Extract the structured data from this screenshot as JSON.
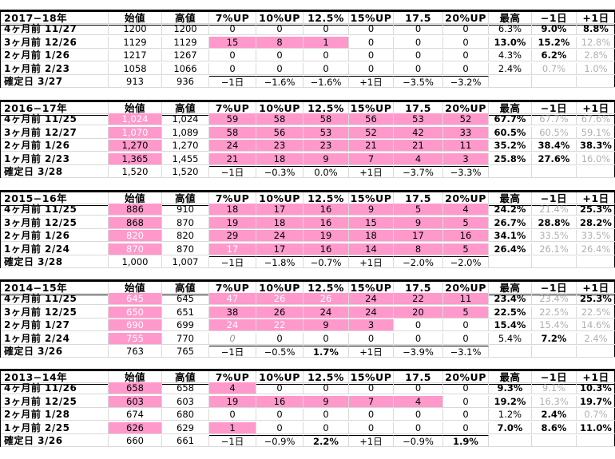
{
  "headers": [
    "始値",
    "高値",
    "7%UP",
    "10%UP",
    "12.5%",
    "15%UP",
    "17.5",
    "20%UP",
    "最高",
    "−1日",
    "+1日"
  ],
  "blocks": [
    {
      "year": "2017−18年",
      "rows": [
        {
          "label": "4ヶ月前 11/27",
          "cells": [
            "1200",
            "1200",
            "0",
            "0",
            "0",
            "0",
            "0",
            "0",
            "6.3%",
            "9.0%",
            "8.8%"
          ],
          "style": [
            "",
            "",
            "",
            "",
            "",
            "",
            "",
            "",
            "",
            "b",
            "b"
          ]
        },
        {
          "label": "3ヶ月前 12/26",
          "cells": [
            "1129",
            "1129",
            "15",
            "8",
            "1",
            "0",
            "0",
            "0",
            "13.0%",
            "15.2%",
            "12.8%"
          ],
          "style": [
            "",
            "",
            "p",
            "p",
            "p",
            "",
            "",
            "",
            "b",
            "b",
            "g"
          ]
        },
        {
          "label": "2ヶ月前 1/26",
          "cells": [
            "1217",
            "1267",
            "0",
            "0",
            "0",
            "0",
            "0",
            "0",
            "4.3%",
            "6.2%",
            "2.8%"
          ],
          "style": [
            "",
            "",
            "",
            "",
            "",
            "",
            "",
            "",
            "",
            "b",
            "g"
          ]
        },
        {
          "label": "1ヶ月前 2/23",
          "cells": [
            "1058",
            "1066",
            "0",
            "0",
            "0",
            "0",
            "0",
            "0",
            "2.4%",
            "0.7%",
            "1.0%"
          ],
          "style": [
            "",
            "",
            "",
            "",
            "",
            "",
            "",
            "",
            "",
            "g",
            "g"
          ]
        },
        {
          "label": "確定日 3/27",
          "cells": [
            "913",
            "936",
            "−1日",
            "−1.6%",
            "−1.6%",
            "+1日",
            "−3.5%",
            "−3.2%",
            "",
            "",
            ""
          ],
          "style": [
            "",
            "",
            "x",
            "x",
            "x",
            "x",
            "x",
            "x",
            "",
            "",
            ""
          ]
        }
      ]
    },
    {
      "year": "2016−17年",
      "rows": [
        {
          "label": "4ヶ月前 11/25",
          "cells": [
            "1,024",
            "1,024",
            "59",
            "58",
            "58",
            "56",
            "53",
            "52",
            "67.7%",
            "67.7%",
            "67.6%"
          ],
          "style": [
            "pg",
            "",
            "p",
            "p",
            "p",
            "p",
            "p",
            "p",
            "b",
            "g",
            "g"
          ]
        },
        {
          "label": "3ヶ月前 12/27",
          "cells": [
            "1,070",
            "1,089",
            "58",
            "56",
            "53",
            "52",
            "42",
            "33",
            "60.5%",
            "60.5%",
            "59.1%"
          ],
          "style": [
            "pg",
            "",
            "p",
            "p",
            "p",
            "p",
            "p",
            "p",
            "b",
            "g",
            "g"
          ]
        },
        {
          "label": "2ヶ月前 1/26",
          "cells": [
            "1,270",
            "1,270",
            "24",
            "23",
            "23",
            "21",
            "21",
            "11",
            "35.2%",
            "38.4%",
            "38.3%"
          ],
          "style": [
            "p",
            "",
            "p",
            "p",
            "p",
            "p",
            "p",
            "p",
            "b",
            "b",
            "b"
          ]
        },
        {
          "label": "1ヶ月前 2/23",
          "cells": [
            "1,365",
            "1,455",
            "21",
            "18",
            "9",
            "7",
            "4",
            "3",
            "25.8%",
            "27.6%",
            "16.0%"
          ],
          "style": [
            "p",
            "",
            "p",
            "p",
            "p",
            "p",
            "p",
            "p",
            "b",
            "b",
            "g"
          ]
        },
        {
          "label": "確定日 3/28",
          "cells": [
            "1,520",
            "1,520",
            "−1日",
            "−0.3%",
            "0.0%",
            "+1日",
            "−3.7%",
            "−3.3%",
            "",
            "",
            ""
          ],
          "style": [
            "",
            "",
            "x",
            "x",
            "x",
            "x",
            "x",
            "x",
            "",
            "",
            ""
          ]
        }
      ]
    },
    {
      "year": "2015−16年",
      "rows": [
        {
          "label": "4ヶ月前 11/25",
          "cells": [
            "886",
            "910",
            "18",
            "17",
            "16",
            "9",
            "5",
            "4",
            "24.2%",
            "21.4%",
            "25.3%"
          ],
          "style": [
            "p",
            "",
            "p",
            "p",
            "p",
            "p",
            "p",
            "p",
            "b",
            "g",
            "b"
          ]
        },
        {
          "label": "3ヶ月前 12/25",
          "cells": [
            "868",
            "870",
            "19",
            "18",
            "16",
            "15",
            "9",
            "5",
            "26.7%",
            "28.8%",
            "28.2%"
          ],
          "style": [
            "p",
            "",
            "p",
            "p",
            "p",
            "p",
            "p",
            "p",
            "b",
            "b",
            "b"
          ]
        },
        {
          "label": "2ヶ月前 1/26",
          "cells": [
            "820",
            "820",
            "29",
            "24",
            "19",
            "18",
            "17",
            "16",
            "34.1%",
            "33.5%",
            "33.5%"
          ],
          "style": [
            "pg",
            "",
            "p",
            "p",
            "p",
            "p",
            "p",
            "p",
            "b",
            "g",
            "g"
          ]
        },
        {
          "label": "1ヶ月前 2/24",
          "cells": [
            "870",
            "870",
            "17",
            "17",
            "16",
            "14",
            "8",
            "5",
            "26.4%",
            "26.1%",
            "26.4%"
          ],
          "style": [
            "pg",
            "",
            "pg",
            "p",
            "p",
            "p",
            "p",
            "p",
            "b",
            "g",
            "g"
          ]
        },
        {
          "label": "確定日 3/28",
          "cells": [
            "1,000",
            "1,007",
            "−1日",
            "−1.8%",
            "−0.7%",
            "+1日",
            "−2.0%",
            "−2.0%",
            "",
            "",
            ""
          ],
          "style": [
            "",
            "",
            "x",
            "x",
            "x",
            "x",
            "x",
            "x",
            "",
            "",
            ""
          ]
        }
      ]
    },
    {
      "year": "2014−15年",
      "rows": [
        {
          "label": "4ヶ月前 11/25",
          "cells": [
            "645",
            "645",
            "47",
            "26",
            "26",
            "24",
            "22",
            "11",
            "23.4%",
            "23.4%",
            "25.3%"
          ],
          "style": [
            "pg",
            "",
            "pg",
            "pg",
            "pg",
            "p",
            "p",
            "p",
            "b",
            "g",
            "b"
          ]
        },
        {
          "label": "3ヶ月前 12/25",
          "cells": [
            "650",
            "651",
            "38",
            "26",
            "24",
            "24",
            "20",
            "5",
            "22.5%",
            "22.5%",
            "22.5%"
          ],
          "style": [
            "pg",
            "",
            "p",
            "p",
            "p",
            "p",
            "p",
            "p",
            "b",
            "g",
            "g"
          ]
        },
        {
          "label": "2ヶ月前 1/27",
          "cells": [
            "690",
            "699",
            "24",
            "22",
            "9",
            "3",
            "0",
            "0",
            "15.4%",
            "15.4%",
            "14.6%"
          ],
          "style": [
            "pg",
            "",
            "pg",
            "pg",
            "p",
            "p",
            "",
            "",
            "b",
            "g",
            "g"
          ]
        },
        {
          "label": "1ヶ月前 2/24",
          "cells": [
            "755",
            "770",
            "0",
            "0",
            "0",
            "0",
            "0",
            "0",
            "5.4%",
            "7.2%",
            "2.4%"
          ],
          "style": [
            "pg",
            "",
            "i",
            "",
            "",
            "",
            "",
            "",
            "",
            "b",
            "g"
          ]
        },
        {
          "label": "確定日 3/26",
          "cells": [
            "763",
            "765",
            "−1日",
            "−0.5%",
            "1.7%",
            "+1日",
            "−3.9%",
            "−3.1%",
            "",
            "",
            ""
          ],
          "style": [
            "",
            "",
            "x",
            "x",
            "xb",
            "x",
            "x",
            "x",
            "",
            "",
            ""
          ]
        }
      ]
    },
    {
      "year": "2013−14年",
      "rows": [
        {
          "label": "4ヶ月前 11/26",
          "cells": [
            "658",
            "658",
            "4",
            "0",
            "0",
            "0",
            "0",
            "0",
            "9.3%",
            "9.1%",
            "10.3%"
          ],
          "style": [
            "p",
            "",
            "p",
            "",
            "",
            "",
            "",
            "",
            "b",
            "g",
            "b"
          ]
        },
        {
          "label": "3ヶ月前 12/25",
          "cells": [
            "603",
            "603",
            "19",
            "16",
            "9",
            "7",
            "4",
            "0",
            "19.2%",
            "16.3%",
            "19.7%"
          ],
          "style": [
            "p",
            "",
            "p",
            "p",
            "p",
            "p",
            "p",
            "",
            "b",
            "g",
            "b"
          ]
        },
        {
          "label": "2ヶ月前 1/28",
          "cells": [
            "674",
            "680",
            "0",
            "0",
            "0",
            "0",
            "0",
            "0",
            "1.2%",
            "2.4%",
            "0.7%"
          ],
          "style": [
            "",
            "",
            "",
            "",
            "",
            "",
            "",
            "",
            "",
            "b",
            "g"
          ]
        },
        {
          "label": "1ヶ月前 2/25",
          "cells": [
            "626",
            "629",
            "1",
            "0",
            "0",
            "0",
            "0",
            "0",
            "7.0%",
            "8.6%",
            "11.0%"
          ],
          "style": [
            "p",
            "",
            "p",
            "",
            "",
            "",
            "",
            "",
            "b",
            "b",
            "b"
          ]
        },
        {
          "label": "確定日 3/26",
          "cells": [
            "660",
            "661",
            "−1日",
            "−0.9%",
            "2.2%",
            "+1日",
            "−0.9%",
            "1.9%",
            "",
            "",
            ""
          ],
          "style": [
            "",
            "",
            "x",
            "x",
            "xb",
            "x",
            "x",
            "xb",
            "",
            "",
            ""
          ]
        }
      ]
    }
  ],
  "colors": {
    "pink": "#ff99cc",
    "gray_text": "#b0b0b0",
    "grid": "#d9d9d9"
  }
}
